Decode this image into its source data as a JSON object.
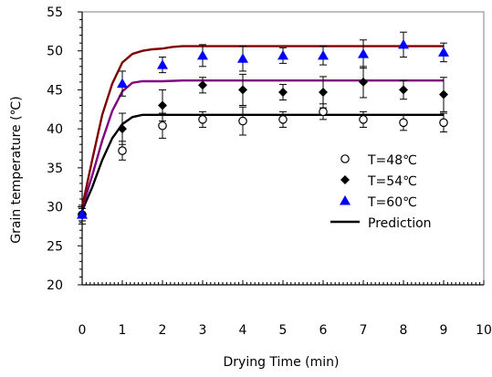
{
  "chart_data": {
    "type": "scatter",
    "title": "",
    "xlabel": "Drying Time (min)",
    "ylabel": "Grain temperature (℃)",
    "xlim": [
      0,
      10
    ],
    "ylim": [
      20,
      55
    ],
    "x_ticks": [
      "0",
      "1",
      "2",
      "3",
      "4",
      "5",
      "6",
      "7",
      "8",
      "9",
      "10"
    ],
    "y_ticks": [
      "20",
      "25",
      "30",
      "35",
      "40",
      "45",
      "50",
      "55"
    ],
    "grid": false,
    "legend_position": "right",
    "series": [
      {
        "name": "T=48℃",
        "marker": "open-circle",
        "color": "#000000",
        "x": [
          0,
          1,
          2,
          3,
          4,
          5,
          6,
          7,
          8,
          9
        ],
        "y": [
          29.0,
          37.2,
          40.4,
          41.2,
          41.0,
          41.2,
          42.2,
          41.2,
          40.8,
          40.8
        ],
        "err": [
          1.2,
          1.2,
          1.6,
          1.0,
          1.8,
          1.0,
          1.0,
          1.0,
          1.0,
          1.2
        ]
      },
      {
        "name": "T=54℃",
        "marker": "filled-diamond",
        "color": "#000000",
        "x": [
          0,
          1,
          2,
          3,
          4,
          5,
          6,
          7,
          8,
          9
        ],
        "y": [
          29.0,
          40.0,
          43.0,
          45.6,
          45.0,
          44.7,
          44.7,
          46.0,
          45.0,
          44.4
        ],
        "err": [
          0.8,
          2.0,
          2.0,
          1.0,
          2.0,
          1.0,
          2.0,
          2.0,
          1.2,
          2.2
        ]
      },
      {
        "name": "T=60℃",
        "marker": "filled-triangle",
        "color": "#0000ff",
        "x": [
          0,
          1,
          2,
          3,
          4,
          5,
          6,
          7,
          8,
          9
        ],
        "y": [
          29.0,
          45.8,
          48.2,
          49.4,
          49.0,
          49.4,
          49.4,
          49.6,
          50.8,
          49.8
        ],
        "err": [
          0.8,
          1.6,
          1.0,
          1.4,
          1.6,
          1.0,
          1.2,
          1.8,
          1.6,
          1.2
        ]
      }
    ],
    "prediction": {
      "name": "Prediction",
      "legend_color": "#000000",
      "curves": [
        {
          "color": "#000000",
          "x": [
            0,
            0.25,
            0.5,
            0.75,
            1.0,
            1.25,
            1.5,
            1.75,
            2.0,
            2.5,
            3,
            4,
            5,
            6,
            7,
            8,
            9
          ],
          "y": [
            29.5,
            32.5,
            36.0,
            38.8,
            40.6,
            41.5,
            41.8,
            41.8,
            41.8,
            41.8,
            41.8,
            41.8,
            41.8,
            41.8,
            41.8,
            41.8,
            41.8
          ]
        },
        {
          "color": "#800080",
          "x": [
            0,
            0.25,
            0.5,
            0.75,
            1.0,
            1.25,
            1.5,
            1.75,
            2.0,
            2.5,
            3,
            4,
            5,
            6,
            7,
            8,
            9
          ],
          "y": [
            29.8,
            34.0,
            38.5,
            42.3,
            44.8,
            45.9,
            46.1,
            46.1,
            46.1,
            46.2,
            46.2,
            46.2,
            46.2,
            46.2,
            46.2,
            46.2,
            46.2
          ]
        },
        {
          "color": "#7f0000",
          "x": [
            0,
            0.25,
            0.5,
            0.75,
            1.0,
            1.25,
            1.5,
            1.75,
            2.0,
            2.25,
            2.5,
            2.75,
            3,
            4,
            5,
            6,
            7,
            8,
            9
          ],
          "y": [
            30.0,
            36.0,
            41.8,
            45.8,
            48.5,
            49.6,
            50.0,
            50.2,
            50.3,
            50.5,
            50.6,
            50.6,
            50.6,
            50.6,
            50.6,
            50.6,
            50.6,
            50.6,
            50.6
          ]
        }
      ]
    }
  }
}
